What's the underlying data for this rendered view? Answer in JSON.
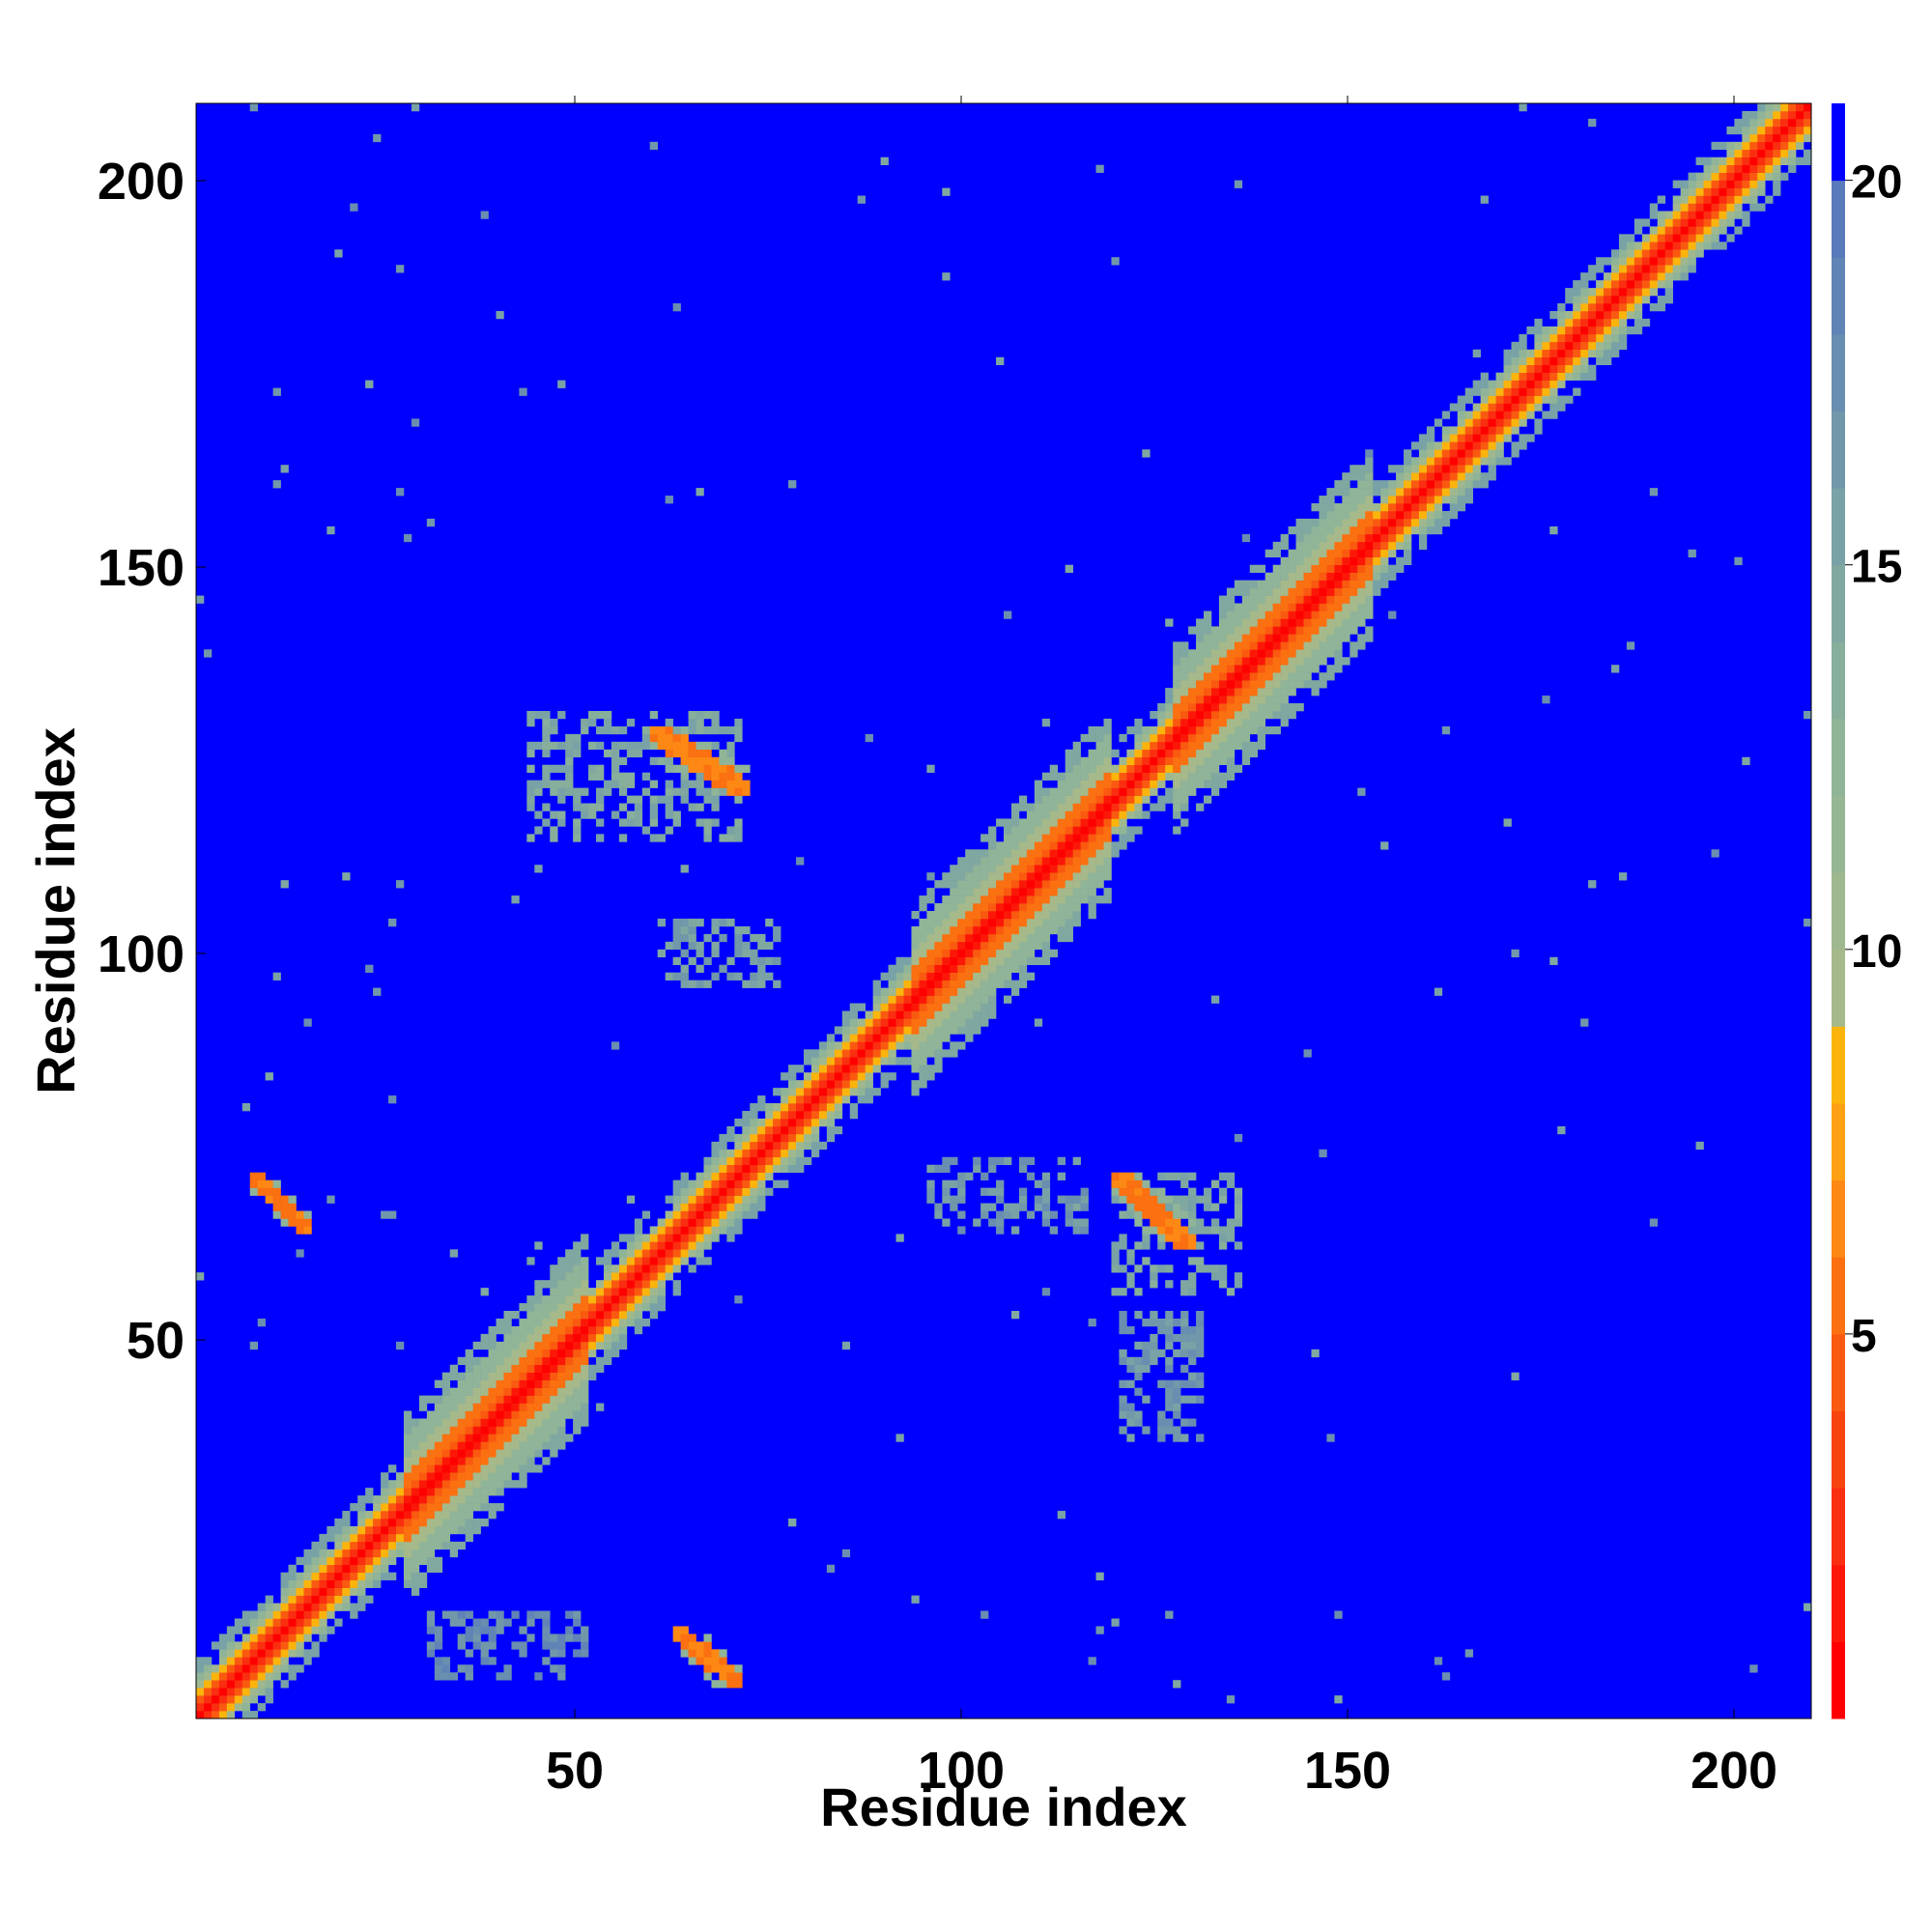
{
  "chart_data": {
    "type": "heatmap",
    "title": "",
    "xlabel": "Residue index",
    "ylabel": "Residue index",
    "xlim": [
      1,
      210
    ],
    "ylim": [
      1,
      210
    ],
    "xticks": [
      50,
      100,
      150,
      200
    ],
    "yticks": [
      50,
      100,
      150,
      200
    ],
    "colorbar": {
      "ticks": [
        5,
        10,
        15,
        20
      ],
      "range": [
        0,
        21
      ],
      "levels": [
        0,
        1,
        2,
        3,
        4,
        5,
        6,
        7,
        8,
        9,
        10,
        11,
        12,
        13,
        14,
        15,
        16,
        17,
        18,
        19,
        20,
        21
      ],
      "colors": [
        "#ff0000",
        "#fc1808",
        "#fa2e10",
        "#f8440f",
        "#f95a10",
        "#fb7010",
        "#fd8814",
        "#fea014",
        "#fbb40c",
        "#a6b98a",
        "#9fb890",
        "#97b694",
        "#90b498",
        "#88ae9c",
        "#80a8a0",
        "#78a2a6",
        "#7098aa",
        "#688eb0",
        "#6084b6",
        "#587aba",
        "#0000ff"
      ]
    },
    "value_scale": "distance (color-coded, low = red, high = blue)",
    "features": {
      "diagonal_band": {
        "start": 1,
        "end": 210
      },
      "helix_blocks": [
        [
          27,
          50
        ],
        [
          93,
          118
        ],
        [
          127,
          152
        ]
      ],
      "off_diagonal_contacts": [
        {
          "x": [
            62,
            70
          ],
          "y": [
            4,
            11
          ],
          "value": 5
        },
        {
          "x": [
            7,
            14
          ],
          "y": [
            63,
            70
          ],
          "value": 5
        },
        {
          "x": [
            59,
            71
          ],
          "y": [
            120,
            128
          ],
          "value": 5
        },
        {
          "x": [
            119,
            129
          ],
          "y": [
            61,
            70
          ],
          "value": 5
        },
        {
          "x": [
            43,
            70
          ],
          "y": [
            114,
            130
          ],
          "value": 13
        },
        {
          "x": [
            119,
            135
          ],
          "y": [
            55,
            70
          ],
          "value": 13
        },
        {
          "x": [
            60,
            75
          ],
          "y": [
            95,
            103
          ],
          "value": 14
        },
        {
          "x": [
            95,
            115
          ],
          "y": [
            63,
            72
          ],
          "value": 15
        },
        {
          "x": [
            120,
            130
          ],
          "y": [
            35,
            52
          ],
          "value": 15
        },
        {
          "x": [
            30,
            50
          ],
          "y": [
            5,
            13
          ],
          "value": 16
        }
      ]
    }
  }
}
